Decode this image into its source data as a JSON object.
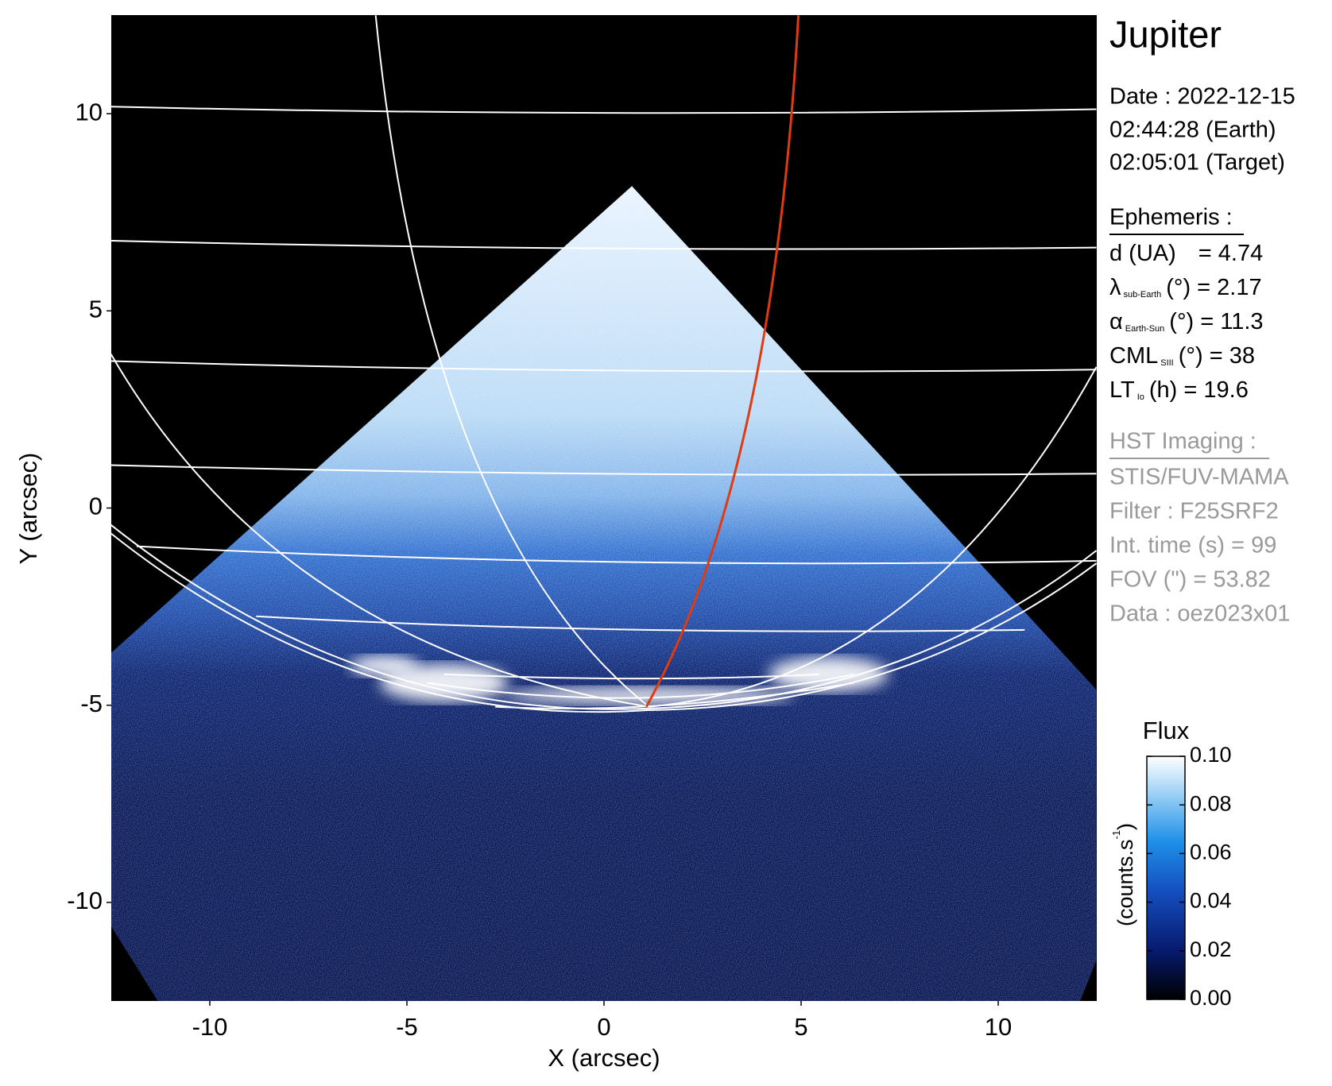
{
  "chart_data": {
    "type": "image",
    "title": "Jupiter",
    "xlabel": "X (arcsec)",
    "ylabel": "Y (arcsec)",
    "xlim": [
      -12.5,
      12.5
    ],
    "ylim": [
      -12.5,
      12.5
    ],
    "xticks": [
      -10,
      -5,
      0,
      5,
      10
    ],
    "yticks": [
      -10,
      -5,
      0,
      5,
      10
    ],
    "colorbar": {
      "title": "Flux",
      "label": "(counts.s",
      "label_sup": "-1",
      "label_end": ")",
      "lim": [
        0,
        0.1
      ],
      "ticks": [
        {
          "value": 0,
          "label": "0.00"
        },
        {
          "value": 0.02,
          "label": "0.02"
        },
        {
          "value": 0.04,
          "label": "0.04"
        },
        {
          "value": 0.06,
          "label": "0.06"
        },
        {
          "value": 0.08,
          "label": "0.08"
        },
        {
          "value": 0.1,
          "label": "0.10"
        }
      ]
    },
    "info": {
      "date": "Date : 2022-12-15",
      "earth_time": "02:44:28 (Earth)",
      "target_time": "02:05:01 (Target)",
      "ephemeris": {
        "heading": "Ephemeris :",
        "rows": [
          {
            "main": "d (UA)",
            "rest": "= 4.74"
          },
          {
            "main": "λ",
            "sub": "sub-Earth",
            "rest": "(°) = 2.17"
          },
          {
            "main": "α",
            "sub": "Earth-Sun",
            "rest": "(°) = 11.3"
          },
          {
            "main": "CML",
            "sub": "SIII",
            "rest": "(°) = 38"
          },
          {
            "main": "LT",
            "sub": "Io",
            "rest": "(h) = 19.6"
          }
        ]
      },
      "imaging": {
        "heading": "HST Imaging :",
        "rows": [
          "STIS/FUV-MAMA",
          "Filter : F25SRF2",
          "Int. time (s) = 99",
          "FOV (\") = 53.82",
          "Data : oez023x01"
        ]
      }
    }
  }
}
